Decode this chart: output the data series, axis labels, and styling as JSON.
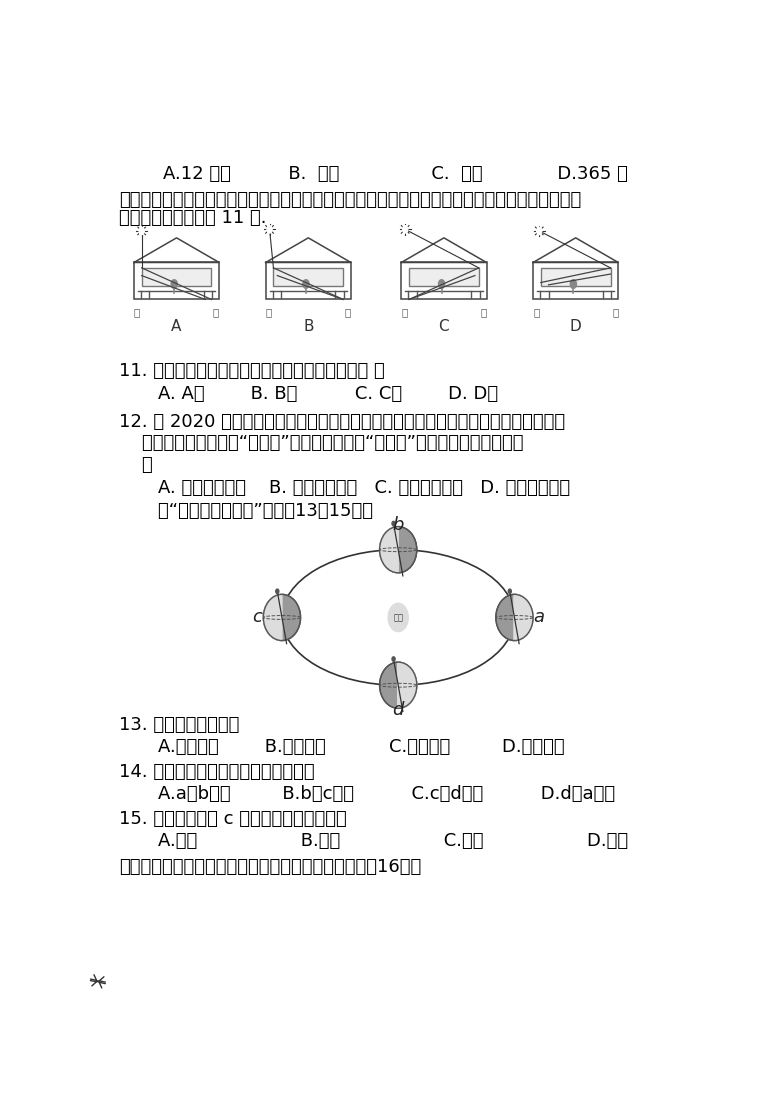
{
  "bg_color": "#ffffff",
  "text_color": "#000000",
  "line1": "    A.12 小时          B.  一年                C.  一天             D.365 天",
  "line2": "烟台的小明善于观察，一年中，他在不同时期观察并记录了当地正午时刻教室内的光照情况（如图",
  "line3": "所示），据图回答第 11 题.",
  "q11": "11. 四幅图中有一幅是冬至日的记录图，该图是（ ）",
  "q11_opts": "    A. A图        B. B图          C. C图        D. D图",
  "q12": "12. 当 2020 年零点钟声敲响后，北京的晓红兴奋地给在美国的姑妈打电话送去新年问",
  "q12b": "    候。当她向姑妈问候“新年好”时，姑妈却回答“除夕好”。对此现象解释正确的",
  "q12c": "    是",
  "q12_opts": "    A. 两地季节不同    B. 两地远隔重洋   C. 两地存在时差   D. 两地习信不同",
  "read_intro": "    读“地球公转示意图”，完成13～15题。",
  "q13": "13. 地球公转的方向是",
  "q13_opts": "    A.自西向东        B.自东向西           C.自南向北         D.自北向南",
  "q14": "14. 我国国庆节期间，地球公转位置在",
  "q14_opts": "    A.a、b之间         B.b、c之间          C.c、d之间          D.d、a之间",
  "q15": "15. 当地球运动到 c 处时，北半球的季节是",
  "q15_opts": "    A.夏季                  B.春季                  C.秋季                  D.冬季",
  "q16_intro": "如下图是太阳直射点一年当中回归运动的示意图，完成16题。",
  "fontsize_main": 13,
  "fontsize_small": 12
}
